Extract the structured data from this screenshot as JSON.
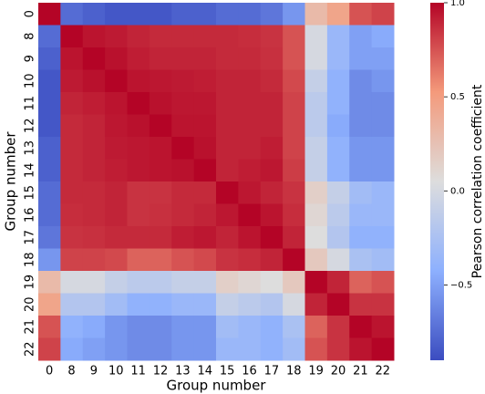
{
  "chart_data": {
    "type": "heatmap",
    "x_label": "Group number",
    "y_label": "Group number",
    "colorbar_label": "Pearson correlation coefficient",
    "colormap": "coolwarm",
    "categories": [
      "0",
      "8",
      "9",
      "10",
      "11",
      "12",
      "13",
      "14",
      "15",
      "16",
      "17",
      "18",
      "19",
      "20",
      "21",
      "22"
    ],
    "clim": [
      -0.9,
      1.0
    ],
    "colorbar_ticks": [
      {
        "value": -0.5,
        "label": "−0.5"
      },
      {
        "value": 0,
        "label": "0.0"
      },
      0.5,
      {
        "value": 1,
        "label": "1.0"
      }
    ],
    "values": [
      [
        1,
        -0.75,
        -0.8,
        -0.85,
        -0.85,
        -0.85,
        -0.8,
        -0.8,
        -0.75,
        -0.75,
        -0.7,
        -0.55,
        0.3,
        0.45,
        0.75,
        0.8
      ],
      [
        -0.75,
        1,
        0.95,
        0.93,
        0.9,
        0.88,
        0.88,
        0.88,
        0.88,
        0.87,
        0.85,
        0.75,
        0.0,
        -0.35,
        -0.5,
        -0.45
      ],
      [
        -0.8,
        0.95,
        1,
        0.96,
        0.92,
        0.9,
        0.9,
        0.9,
        0.88,
        0.88,
        0.86,
        0.75,
        0.0,
        -0.35,
        -0.5,
        -0.5
      ],
      [
        -0.85,
        0.93,
        0.96,
        1,
        0.95,
        0.94,
        0.93,
        0.92,
        0.9,
        0.9,
        0.88,
        0.78,
        -0.1,
        -0.4,
        -0.6,
        -0.55
      ],
      [
        -0.85,
        0.9,
        0.92,
        0.95,
        1,
        0.96,
        0.94,
        0.94,
        0.9,
        0.9,
        0.9,
        0.8,
        -0.15,
        -0.4,
        -0.6,
        -0.6
      ],
      [
        -0.85,
        0.88,
        0.9,
        0.94,
        0.96,
        1,
        0.95,
        0.95,
        0.9,
        0.9,
        0.9,
        0.8,
        -0.15,
        -0.45,
        -0.6,
        -0.6
      ],
      [
        -0.8,
        0.88,
        0.9,
        0.93,
        0.94,
        0.95,
        1,
        0.96,
        0.9,
        0.9,
        0.92,
        0.8,
        -0.1,
        -0.4,
        -0.55,
        -0.55
      ],
      [
        -0.8,
        0.88,
        0.9,
        0.92,
        0.94,
        0.95,
        0.96,
        1,
        0.9,
        0.92,
        0.94,
        0.82,
        -0.1,
        -0.4,
        -0.55,
        -0.55
      ],
      [
        -0.75,
        0.88,
        0.88,
        0.9,
        0.85,
        0.85,
        0.88,
        0.88,
        1,
        0.94,
        0.9,
        0.85,
        0.15,
        -0.1,
        -0.3,
        -0.35
      ],
      [
        -0.75,
        0.87,
        0.88,
        0.9,
        0.85,
        0.86,
        0.88,
        0.9,
        0.94,
        1,
        0.95,
        0.87,
        0.1,
        -0.15,
        -0.35,
        -0.35
      ],
      [
        -0.7,
        0.85,
        0.86,
        0.88,
        0.88,
        0.88,
        0.92,
        0.94,
        0.9,
        0.95,
        1,
        0.9,
        0.05,
        -0.2,
        -0.4,
        -0.4
      ],
      [
        -0.55,
        0.8,
        0.8,
        0.78,
        0.7,
        0.7,
        0.75,
        0.78,
        0.85,
        0.87,
        0.9,
        1,
        0.2,
        0.0,
        -0.25,
        -0.3
      ],
      [
        0.3,
        0.0,
        0.0,
        -0.1,
        -0.15,
        -0.15,
        -0.1,
        -0.1,
        0.15,
        0.1,
        0.05,
        0.2,
        1,
        0.9,
        0.7,
        0.75
      ],
      [
        0.45,
        -0.2,
        -0.2,
        -0.3,
        -0.4,
        -0.4,
        -0.35,
        -0.35,
        -0.1,
        -0.15,
        -0.2,
        0.0,
        0.9,
        1,
        0.85,
        0.85
      ],
      [
        0.75,
        -0.4,
        -0.45,
        -0.55,
        -0.6,
        -0.6,
        -0.55,
        -0.55,
        -0.3,
        -0.35,
        -0.4,
        -0.25,
        0.7,
        0.85,
        1,
        0.95
      ],
      [
        0.8,
        -0.45,
        -0.5,
        -0.55,
        -0.6,
        -0.6,
        -0.55,
        -0.55,
        -0.35,
        -0.35,
        -0.4,
        -0.3,
        0.75,
        0.85,
        0.95,
        1
      ]
    ]
  }
}
